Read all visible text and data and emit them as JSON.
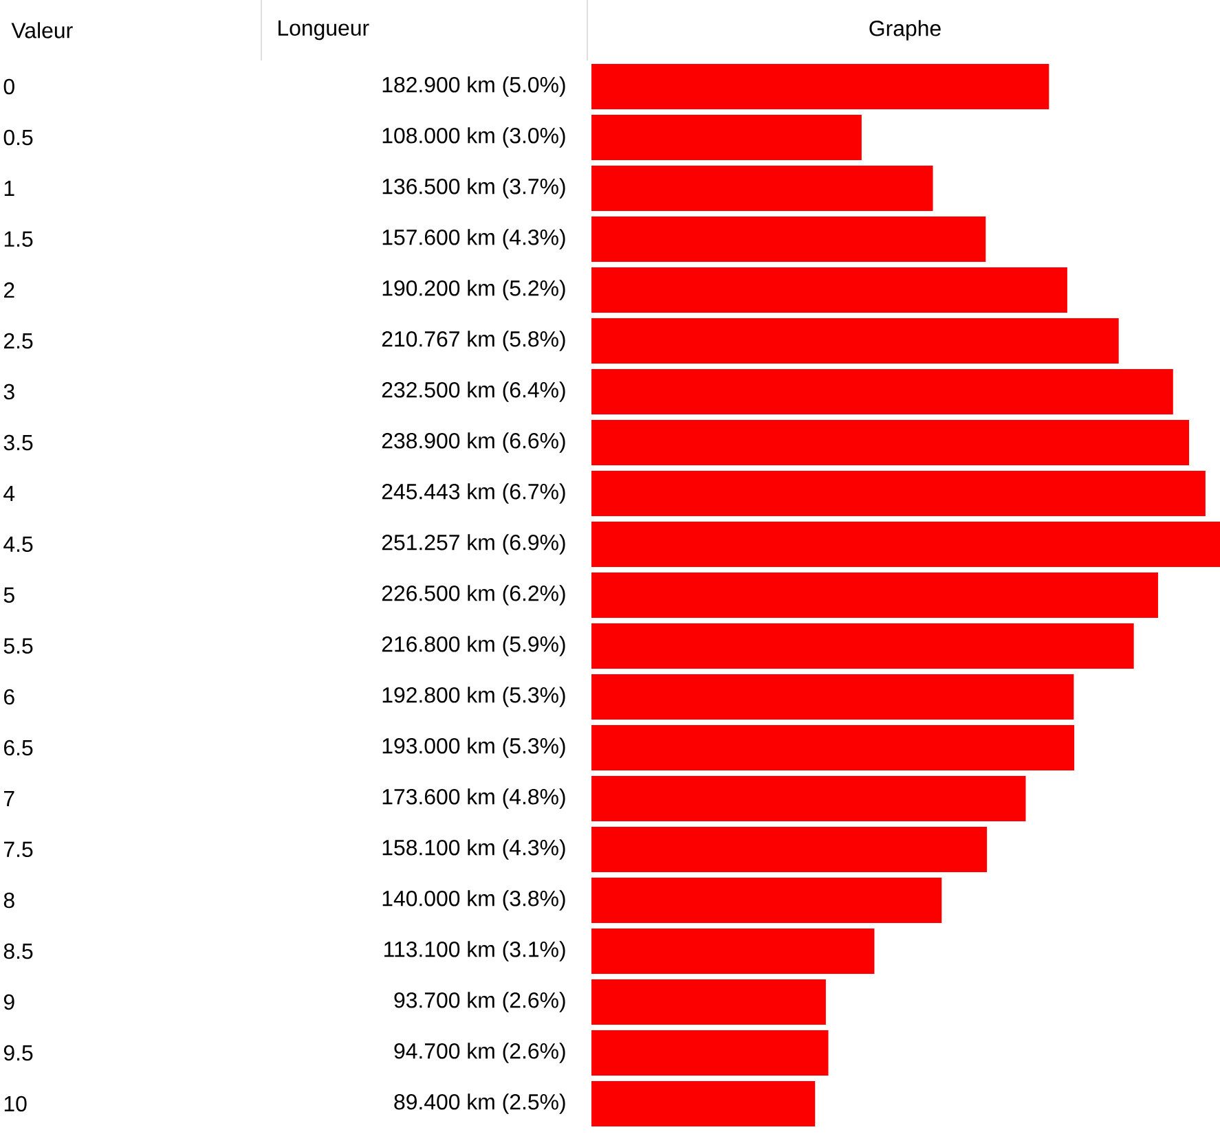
{
  "chart_data": {
    "type": "bar",
    "orientation": "horizontal",
    "title": "Graphe",
    "ylabel": "Valeur",
    "annotations": [
      "Longueur"
    ],
    "categories": [
      "0",
      "0.5",
      "1",
      "1.5",
      "2",
      "2.5",
      "3",
      "3.5",
      "4",
      "4.5",
      "5",
      "5.5",
      "6",
      "6.5",
      "7",
      "7.5",
      "8",
      "8.5",
      "9",
      "9.5",
      "10"
    ],
    "values": [
      182.9,
      108.0,
      136.5,
      157.6,
      190.2,
      210.767,
      232.5,
      238.9,
      245.443,
      251.257,
      226.5,
      216.8,
      192.8,
      193.0,
      173.6,
      158.1,
      140.0,
      113.1,
      93.7,
      94.7,
      89.4
    ],
    "value_labels": [
      "182.900 km  (5.0%)",
      "108.000 km  (3.0%)",
      "136.500 km  (3.7%)",
      "157.600 km  (4.3%)",
      "190.200 km  (5.2%)",
      "210.767 km  (5.8%)",
      "232.500 km  (6.4%)",
      "238.900 km  (6.6%)",
      "245.443 km  (6.7%)",
      "251.257 km  (6.9%)",
      "226.500 km  (6.2%)",
      "216.800 km  (5.9%)",
      "192.800 km  (5.3%)",
      "193.000 km  (5.3%)",
      "173.600 km  (4.8%)",
      "158.100 km  (4.3%)",
      "140.000 km  (3.8%)",
      "113.100 km  (3.1%)",
      "93.700 km  (2.6%)",
      "94.700 km  (2.6%)",
      "89.400 km  (2.5%)"
    ],
    "color": "#fc0000"
  }
}
